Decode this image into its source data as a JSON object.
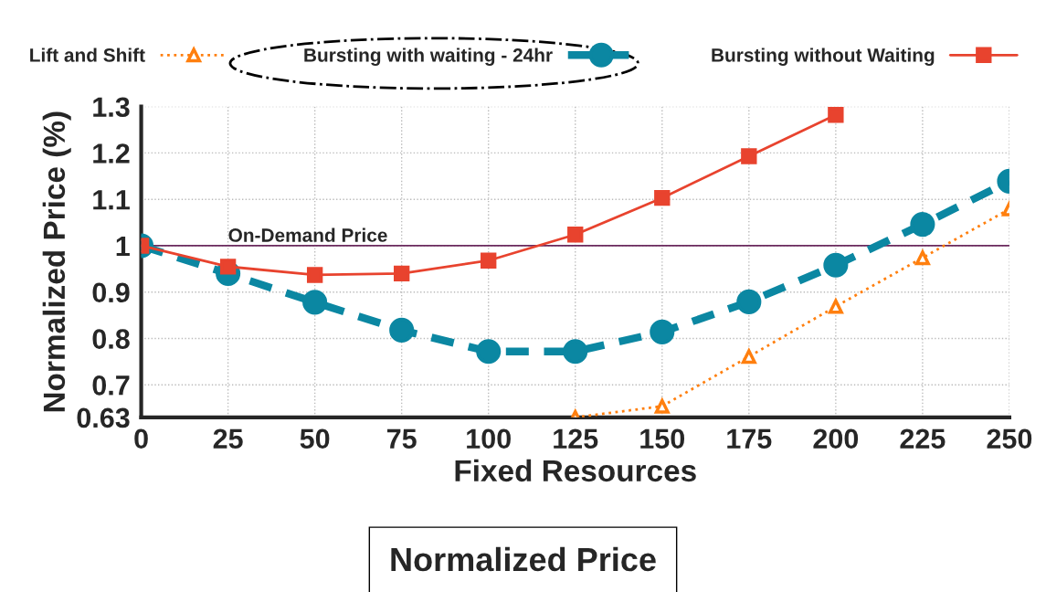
{
  "chart_data": {
    "type": "line",
    "xlabel": "Fixed Resources",
    "ylabel": "Normalized Price (%)",
    "x": [
      0,
      25,
      50,
      75,
      100,
      125,
      150,
      175,
      200,
      225,
      250
    ],
    "series": [
      {
        "name": "Lift and Shift",
        "color": "#ff7f0e",
        "marker": "triangle",
        "line_style": "dotted",
        "values": [
          null,
          null,
          null,
          null,
          null,
          0.63,
          0.654,
          0.761,
          0.869,
          0.974,
          1.079
        ]
      },
      {
        "name": "Bursting with waiting - 24hr",
        "color": "#0b87a2",
        "marker": "circle",
        "line_style": "dashed",
        "values": [
          1.0,
          0.94,
          0.878,
          0.818,
          0.772,
          0.772,
          0.814,
          0.879,
          0.958,
          1.046,
          1.139
        ]
      },
      {
        "name": "Bursting without Waiting",
        "color": "#e8432e",
        "marker": "square",
        "line_style": "solid",
        "values": [
          1.0,
          0.955,
          0.937,
          0.94,
          0.968,
          1.024,
          1.103,
          1.193,
          1.282,
          null,
          null
        ]
      }
    ],
    "xlim": [
      0,
      250
    ],
    "xticks": [
      0,
      25,
      50,
      75,
      100,
      125,
      150,
      175,
      200,
      225,
      250
    ],
    "ylim": [
      0.63,
      1.3
    ],
    "yticks": [
      0.63,
      0.7,
      0.8,
      0.9,
      1,
      1.1,
      1.2,
      1.3
    ],
    "ref_lines": [
      {
        "axis": "y",
        "value": 1,
        "label": "On-Demand Price",
        "color": "#6b2a5e"
      }
    ],
    "annotations": [
      "Normalized Price"
    ],
    "grid": true,
    "legend": "top"
  }
}
